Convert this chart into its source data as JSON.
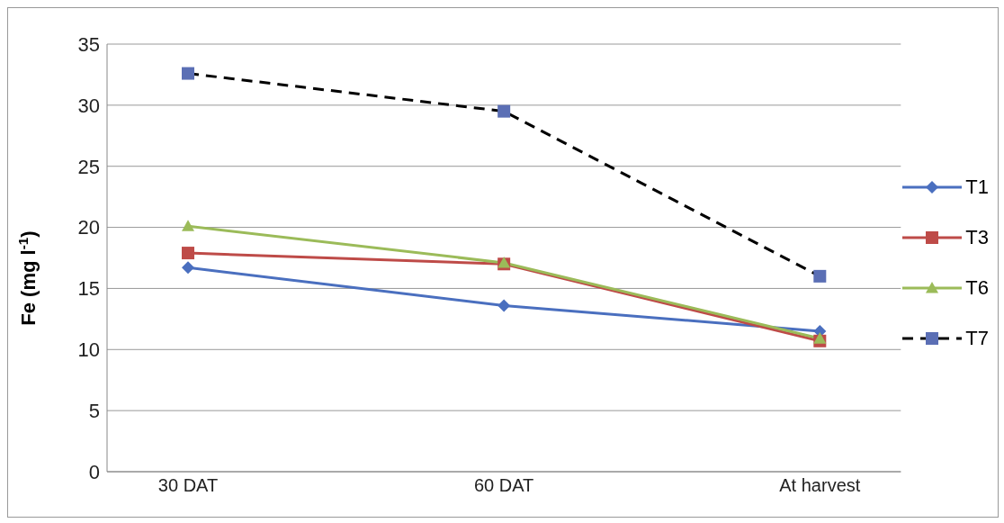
{
  "chart_data": {
    "type": "line",
    "ylabel": "Fe (mg l$^{-1}$)",
    "categories": [
      "30 DAT",
      "60 DAT",
      "At harvest"
    ],
    "ylim": [
      0,
      35
    ],
    "yticks": [
      0,
      5,
      10,
      15,
      20,
      25,
      30,
      35
    ],
    "grid": "y",
    "legend": "right",
    "series": [
      {
        "name": "T1",
        "color": "#4a6fbf",
        "marker": "diamond",
        "line_style": "solid",
        "values": [
          16.7,
          13.6,
          11.5
        ]
      },
      {
        "name": "T3",
        "color": "#be4b48",
        "marker": "square",
        "line_style": "solid",
        "values": [
          17.9,
          17.0,
          10.7
        ]
      },
      {
        "name": "T6",
        "color": "#9bbb59",
        "marker": "triangle",
        "line_style": "solid",
        "values": [
          20.1,
          17.1,
          10.9
        ]
      },
      {
        "name": "T7",
        "color": "#000000",
        "colors": [
          "#5b6fb5",
          "#5b6fb5",
          "#5b6fb5"
        ],
        "marker": "square",
        "line_style": "dashed",
        "values": [
          32.6,
          29.5,
          16.0
        ]
      }
    ]
  }
}
